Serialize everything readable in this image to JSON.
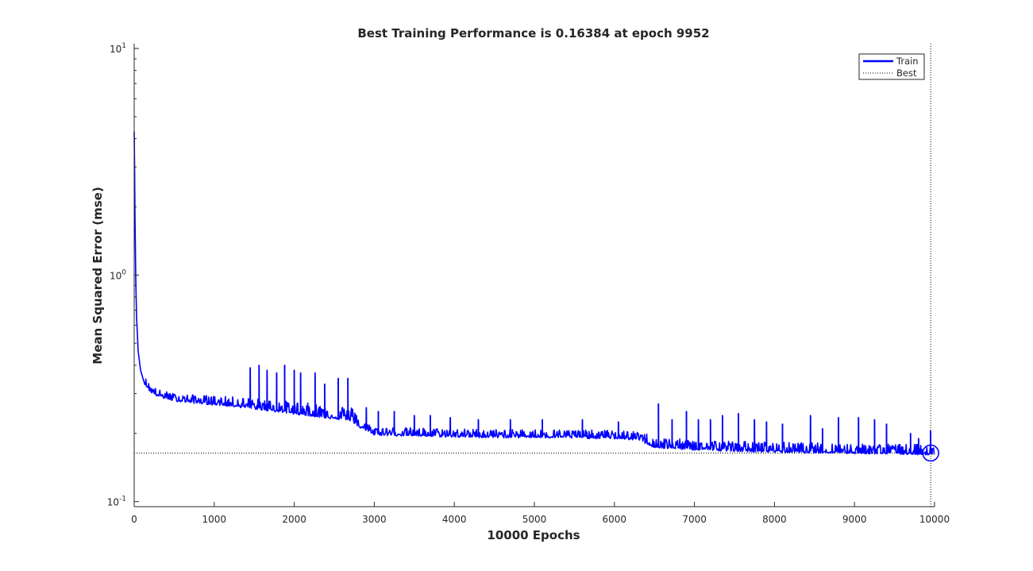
{
  "chart_data": {
    "type": "line",
    "title": "Best Training Performance is 0.16384 at epoch 9952",
    "xlabel": "10000 Epochs",
    "ylabel": "Mean Squared Error  (mse)",
    "xlim": [
      0,
      10000
    ],
    "ylim": [
      0.095,
      10.5
    ],
    "yscale": "log",
    "grid": false,
    "legend_position": "top-right",
    "x_ticks": [
      0,
      1000,
      2000,
      3000,
      4000,
      5000,
      6000,
      7000,
      8000,
      9000,
      10000
    ],
    "x_tick_labels": [
      "0",
      "1000",
      "2000",
      "3000",
      "4000",
      "5000",
      "6000",
      "7000",
      "8000",
      "9000",
      "10000"
    ],
    "y_ticks": [
      {
        "value": 0.1,
        "base": "10",
        "exp": "-1"
      },
      {
        "value": 1,
        "base": "10",
        "exp": "0"
      },
      {
        "value": 10,
        "base": "10",
        "exp": "1"
      }
    ],
    "series": [
      {
        "name": "Train",
        "color": "#0000ff",
        "x": [
          0,
          5,
          10,
          20,
          30,
          50,
          80,
          120,
          200,
          300,
          500,
          700,
          1000,
          1300,
          1600,
          2000,
          2400,
          2700,
          2850,
          3000,
          3500,
          4000,
          4500,
          5000,
          5500,
          6000,
          6300,
          6450,
          6500,
          7000,
          7500,
          8000,
          8500,
          9000,
          9500,
          9952,
          10000
        ],
        "y": [
          4.3,
          3.0,
          1.8,
          0.95,
          0.65,
          0.46,
          0.38,
          0.34,
          0.31,
          0.295,
          0.283,
          0.278,
          0.272,
          0.266,
          0.258,
          0.248,
          0.238,
          0.232,
          0.212,
          0.2,
          0.198,
          0.196,
          0.195,
          0.195,
          0.194,
          0.193,
          0.19,
          0.18,
          0.176,
          0.172,
          0.17,
          0.168,
          0.167,
          0.166,
          0.165,
          0.16384,
          0.164
        ]
      },
      {
        "name": "Best",
        "color": "#000000",
        "style": "dotted",
        "value": 0.16384,
        "epoch": 9952
      }
    ],
    "spikes": [
      {
        "x": 1450,
        "y": 0.39
      },
      {
        "x": 1560,
        "y": 0.4
      },
      {
        "x": 1660,
        "y": 0.38
      },
      {
        "x": 1780,
        "y": 0.37
      },
      {
        "x": 1880,
        "y": 0.4
      },
      {
        "x": 2000,
        "y": 0.38
      },
      {
        "x": 2080,
        "y": 0.37
      },
      {
        "x": 2260,
        "y": 0.37
      },
      {
        "x": 2380,
        "y": 0.33
      },
      {
        "x": 2550,
        "y": 0.35
      },
      {
        "x": 2670,
        "y": 0.35
      },
      {
        "x": 2900,
        "y": 0.26
      },
      {
        "x": 3050,
        "y": 0.25
      },
      {
        "x": 3250,
        "y": 0.25
      },
      {
        "x": 3500,
        "y": 0.24
      },
      {
        "x": 3700,
        "y": 0.24
      },
      {
        "x": 3950,
        "y": 0.235
      },
      {
        "x": 4300,
        "y": 0.23
      },
      {
        "x": 4700,
        "y": 0.23
      },
      {
        "x": 5100,
        "y": 0.23
      },
      {
        "x": 5600,
        "y": 0.23
      },
      {
        "x": 6050,
        "y": 0.225
      },
      {
        "x": 6550,
        "y": 0.27
      },
      {
        "x": 6720,
        "y": 0.23
      },
      {
        "x": 6900,
        "y": 0.25
      },
      {
        "x": 7050,
        "y": 0.23
      },
      {
        "x": 7200,
        "y": 0.23
      },
      {
        "x": 7350,
        "y": 0.24
      },
      {
        "x": 7550,
        "y": 0.245
      },
      {
        "x": 7750,
        "y": 0.23
      },
      {
        "x": 7900,
        "y": 0.225
      },
      {
        "x": 8100,
        "y": 0.22
      },
      {
        "x": 8450,
        "y": 0.24
      },
      {
        "x": 8600,
        "y": 0.21
      },
      {
        "x": 8800,
        "y": 0.235
      },
      {
        "x": 9050,
        "y": 0.235
      },
      {
        "x": 9250,
        "y": 0.23
      },
      {
        "x": 9400,
        "y": 0.22
      },
      {
        "x": 9700,
        "y": 0.2
      },
      {
        "x": 9800,
        "y": 0.19
      },
      {
        "x": 9950,
        "y": 0.205
      }
    ],
    "legend": [
      {
        "label": "Train",
        "color": "#0000ff",
        "style": "solid"
      },
      {
        "label": "Best",
        "color": "#000000",
        "style": "dotted"
      }
    ]
  }
}
